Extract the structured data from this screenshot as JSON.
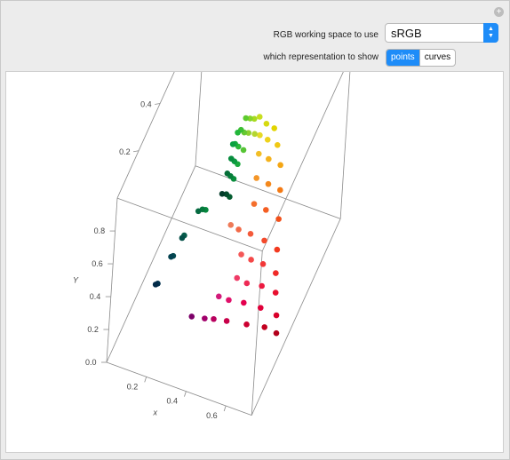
{
  "controls": {
    "reset_icon": "plus-circle-icon",
    "rgb_label": "RGB working space to use",
    "rgb_selected": "sRGB",
    "rep_label": "which representation to show",
    "rep_options": [
      "points",
      "curves"
    ],
    "rep_selected": "points"
  },
  "chart_data": {
    "type": "scatter",
    "axes": {
      "x": {
        "label": "x",
        "ticks": [
          "0.2",
          "0.4",
          "0.6"
        ]
      },
      "y": {
        "label": "y",
        "ticks": [
          "0.2",
          "0.4",
          "0.6",
          "0.8"
        ]
      },
      "Y": {
        "label": "Y",
        "ticks": [
          "0.0",
          "0.2",
          "0.4",
          "0.6",
          "0.8"
        ]
      }
    },
    "points": [
      {
        "x": 0.69,
        "y": 0.3,
        "Y": 0.05,
        "c": "#b3001b"
      },
      {
        "x": 0.63,
        "y": 0.3,
        "Y": 0.06,
        "c": "#c2001f"
      },
      {
        "x": 0.55,
        "y": 0.28,
        "Y": 0.07,
        "c": "#cc0030"
      },
      {
        "x": 0.46,
        "y": 0.26,
        "Y": 0.08,
        "c": "#c8004a"
      },
      {
        "x": 0.4,
        "y": 0.25,
        "Y": 0.08,
        "c": "#b8005e"
      },
      {
        "x": 0.36,
        "y": 0.24,
        "Y": 0.08,
        "c": "#a1006b"
      },
      {
        "x": 0.3,
        "y": 0.23,
        "Y": 0.08,
        "c": "#7c0068"
      },
      {
        "x": 0.68,
        "y": 0.31,
        "Y": 0.14,
        "c": "#d9002a"
      },
      {
        "x": 0.6,
        "y": 0.31,
        "Y": 0.15,
        "c": "#e0003a"
      },
      {
        "x": 0.52,
        "y": 0.3,
        "Y": 0.16,
        "c": "#e4004e"
      },
      {
        "x": 0.45,
        "y": 0.29,
        "Y": 0.16,
        "c": "#e0106a"
      },
      {
        "x": 0.4,
        "y": 0.29,
        "Y": 0.16,
        "c": "#d21a7a"
      },
      {
        "x": 0.66,
        "y": 0.33,
        "Y": 0.24,
        "c": "#e8102f"
      },
      {
        "x": 0.59,
        "y": 0.33,
        "Y": 0.25,
        "c": "#ec1a40"
      },
      {
        "x": 0.52,
        "y": 0.32,
        "Y": 0.25,
        "c": "#ee2a55"
      },
      {
        "x": 0.47,
        "y": 0.32,
        "Y": 0.26,
        "c": "#ef3a66"
      },
      {
        "x": 0.65,
        "y": 0.34,
        "Y": 0.34,
        "c": "#f02a28"
      },
      {
        "x": 0.58,
        "y": 0.35,
        "Y": 0.35,
        "c": "#f23838"
      },
      {
        "x": 0.52,
        "y": 0.35,
        "Y": 0.35,
        "c": "#f44848"
      },
      {
        "x": 0.47,
        "y": 0.35,
        "Y": 0.36,
        "c": "#f45858"
      },
      {
        "x": 0.64,
        "y": 0.36,
        "Y": 0.45,
        "c": "#f23a20"
      },
      {
        "x": 0.57,
        "y": 0.37,
        "Y": 0.46,
        "c": "#f44a2c"
      },
      {
        "x": 0.5,
        "y": 0.37,
        "Y": 0.47,
        "c": "#f45a3a"
      },
      {
        "x": 0.44,
        "y": 0.37,
        "Y": 0.47,
        "c": "#f26a48"
      },
      {
        "x": 0.4,
        "y": 0.37,
        "Y": 0.48,
        "c": "#ee7a58"
      },
      {
        "x": 0.62,
        "y": 0.4,
        "Y": 0.57,
        "c": "#f2501a"
      },
      {
        "x": 0.55,
        "y": 0.41,
        "Y": 0.58,
        "c": "#f45e22"
      },
      {
        "x": 0.49,
        "y": 0.41,
        "Y": 0.59,
        "c": "#f46e2c"
      },
      {
        "x": 0.6,
        "y": 0.44,
        "Y": 0.68,
        "c": "#f47a14"
      },
      {
        "x": 0.54,
        "y": 0.44,
        "Y": 0.69,
        "c": "#f4881c"
      },
      {
        "x": 0.48,
        "y": 0.44,
        "Y": 0.7,
        "c": "#f49628"
      },
      {
        "x": 0.58,
        "y": 0.47,
        "Y": 0.78,
        "c": "#f4a614"
      },
      {
        "x": 0.52,
        "y": 0.47,
        "Y": 0.79,
        "c": "#f4b21c"
      },
      {
        "x": 0.47,
        "y": 0.47,
        "Y": 0.8,
        "c": "#f2be26"
      },
      {
        "x": 0.55,
        "y": 0.49,
        "Y": 0.86,
        "c": "#f0c814"
      },
      {
        "x": 0.5,
        "y": 0.49,
        "Y": 0.87,
        "c": "#eed21c"
      },
      {
        "x": 0.46,
        "y": 0.49,
        "Y": 0.88,
        "c": "#e6da26"
      },
      {
        "x": 0.52,
        "y": 0.51,
        "Y": 0.92,
        "c": "#e2d400"
      },
      {
        "x": 0.48,
        "y": 0.51,
        "Y": 0.93,
        "c": "#d6da10"
      },
      {
        "x": 0.44,
        "y": 0.52,
        "Y": 0.94,
        "c": "#c8de20"
      },
      {
        "x": 0.41,
        "y": 0.53,
        "Y": 0.9,
        "c": "#a8da20"
      },
      {
        "x": 0.38,
        "y": 0.55,
        "Y": 0.86,
        "c": "#86d42a"
      },
      {
        "x": 0.35,
        "y": 0.57,
        "Y": 0.82,
        "c": "#5ecb2e"
      },
      {
        "x": 0.43,
        "y": 0.5,
        "Y": 0.86,
        "c": "#b4d630"
      },
      {
        "x": 0.39,
        "y": 0.52,
        "Y": 0.82,
        "c": "#8ed030"
      },
      {
        "x": 0.36,
        "y": 0.54,
        "Y": 0.78,
        "c": "#66c832"
      },
      {
        "x": 0.33,
        "y": 0.57,
        "Y": 0.74,
        "c": "#3cbf34"
      },
      {
        "x": 0.31,
        "y": 0.58,
        "Y": 0.7,
        "c": "#22b63a"
      },
      {
        "x": 0.38,
        "y": 0.5,
        "Y": 0.74,
        "c": "#56c434"
      },
      {
        "x": 0.34,
        "y": 0.53,
        "Y": 0.7,
        "c": "#2cb838"
      },
      {
        "x": 0.31,
        "y": 0.56,
        "Y": 0.66,
        "c": "#14ac3c"
      },
      {
        "x": 0.29,
        "y": 0.58,
        "Y": 0.62,
        "c": "#0aa040"
      },
      {
        "x": 0.36,
        "y": 0.49,
        "Y": 0.66,
        "c": "#1aa83e"
      },
      {
        "x": 0.33,
        "y": 0.52,
        "Y": 0.62,
        "c": "#0c9a40"
      },
      {
        "x": 0.3,
        "y": 0.55,
        "Y": 0.58,
        "c": "#078c3e"
      },
      {
        "x": 0.35,
        "y": 0.48,
        "Y": 0.58,
        "c": "#088e3c"
      },
      {
        "x": 0.32,
        "y": 0.51,
        "Y": 0.54,
        "c": "#067e3a"
      },
      {
        "x": 0.29,
        "y": 0.54,
        "Y": 0.5,
        "c": "#056e38"
      },
      {
        "x": 0.34,
        "y": 0.47,
        "Y": 0.48,
        "c": "#045c30"
      },
      {
        "x": 0.31,
        "y": 0.5,
        "Y": 0.44,
        "c": "#034c2c"
      },
      {
        "x": 0.28,
        "y": 0.52,
        "Y": 0.4,
        "c": "#033c2a"
      },
      {
        "x": 0.24,
        "y": 0.44,
        "Y": 0.4,
        "c": "#06883e"
      },
      {
        "x": 0.22,
        "y": 0.45,
        "Y": 0.38,
        "c": "#057a3c"
      },
      {
        "x": 0.2,
        "y": 0.45,
        "Y": 0.36,
        "c": "#066a40"
      },
      {
        "x": 0.17,
        "y": 0.38,
        "Y": 0.3,
        "c": "#065c4a"
      },
      {
        "x": 0.16,
        "y": 0.38,
        "Y": 0.28,
        "c": "#055048"
      },
      {
        "x": 0.14,
        "y": 0.34,
        "Y": 0.22,
        "c": "#044a50"
      },
      {
        "x": 0.13,
        "y": 0.34,
        "Y": 0.21,
        "c": "#044250"
      },
      {
        "x": 0.1,
        "y": 0.28,
        "Y": 0.12,
        "c": "#03324e"
      },
      {
        "x": 0.09,
        "y": 0.28,
        "Y": 0.11,
        "c": "#022a48"
      }
    ]
  }
}
